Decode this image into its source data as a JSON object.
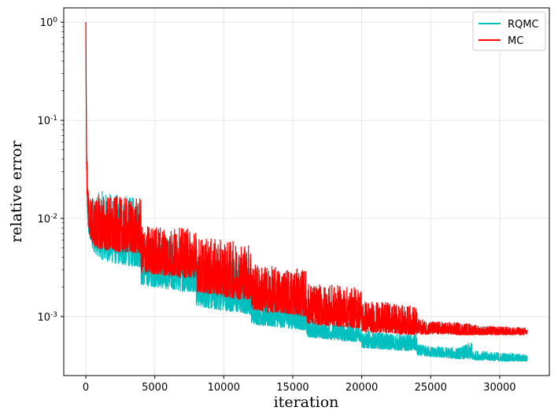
{
  "chart_data": {
    "type": "line",
    "xlabel": "iteration",
    "ylabel": "relative error",
    "x_scale": "linear",
    "y_scale": "log",
    "xlim": [
      -1600,
      33600
    ],
    "ylim": [
      0.00025,
      1.4
    ],
    "x_ticks": [
      0,
      5000,
      10000,
      15000,
      20000,
      25000,
      30000
    ],
    "x_tick_labels": [
      "0",
      "5000",
      "10000",
      "15000",
      "20000",
      "25000",
      "30000"
    ],
    "y_ticks": [
      0.001,
      0.01,
      0.1,
      1
    ],
    "y_tick_exponents": [
      "-3",
      "-2",
      "-1",
      "0"
    ],
    "y_tick_base": "10",
    "grid": true,
    "legend_position": "top-right",
    "series": [
      {
        "name": "RQMC",
        "color": "#00bfbf",
        "x": [
          0,
          30,
          60,
          100,
          150,
          200,
          300,
          500,
          800,
          1200,
          2000,
          3000,
          3990,
          4010,
          5000,
          6000,
          7000,
          7990,
          8010,
          9000,
          10000,
          11000,
          11990,
          12010,
          13000,
          14000,
          15000,
          15990,
          16010,
          17000,
          18000,
          19000,
          19990,
          20010,
          21000,
          22000,
          23000,
          23990,
          24010,
          25000,
          26000,
          27000,
          27990,
          28010,
          29000,
          30000,
          31000,
          32000
        ],
        "low": [
          1.0,
          0.12,
          0.03,
          0.012,
          0.008,
          0.007,
          0.006,
          0.0048,
          0.0042,
          0.0038,
          0.0035,
          0.0033,
          0.0032,
          0.0021,
          0.002,
          0.0019,
          0.0018,
          0.0018,
          0.0013,
          0.0012,
          0.00115,
          0.0011,
          0.00105,
          0.00085,
          0.0008,
          0.00078,
          0.00075,
          0.00072,
          0.00062,
          0.0006,
          0.00058,
          0.00056,
          0.00055,
          0.00048,
          0.00047,
          0.00046,
          0.00045,
          0.00045,
          0.0004,
          0.00039,
          0.00038,
          0.00037,
          0.00037,
          0.00036,
          0.00036,
          0.00035,
          0.00035,
          0.00035
        ],
        "high": [
          1.0,
          0.15,
          0.06,
          0.03,
          0.02,
          0.017,
          0.016,
          0.017,
          0.018,
          0.019,
          0.018,
          0.017,
          0.016,
          0.0065,
          0.0065,
          0.0063,
          0.0062,
          0.006,
          0.0045,
          0.0042,
          0.004,
          0.0038,
          0.0036,
          0.0018,
          0.0017,
          0.0016,
          0.0016,
          0.0015,
          0.001,
          0.00095,
          0.0009,
          0.00088,
          0.00085,
          0.00072,
          0.0007,
          0.00068,
          0.00066,
          0.00065,
          0.00052,
          0.0005,
          0.00049,
          0.00048,
          0.00055,
          0.00045,
          0.00044,
          0.00043,
          0.00042,
          0.00041
        ]
      },
      {
        "name": "MC",
        "color": "#ff0000",
        "x": [
          0,
          30,
          60,
          100,
          150,
          200,
          300,
          500,
          800,
          1200,
          2000,
          3000,
          3990,
          4010,
          5000,
          6000,
          7000,
          7990,
          8010,
          9000,
          10000,
          11000,
          11990,
          12010,
          13000,
          14000,
          15000,
          15990,
          16010,
          17000,
          18000,
          19000,
          19990,
          20010,
          21000,
          22000,
          23000,
          23990,
          24010,
          25000,
          26000,
          27000,
          27990,
          28010,
          29000,
          30000,
          31000,
          32000
        ],
        "low": [
          1.0,
          0.15,
          0.03,
          0.013,
          0.009,
          0.0075,
          0.0065,
          0.0055,
          0.005,
          0.0048,
          0.0046,
          0.0045,
          0.0044,
          0.0028,
          0.0027,
          0.0026,
          0.0025,
          0.0025,
          0.0018,
          0.0017,
          0.0016,
          0.0015,
          0.0015,
          0.0012,
          0.0011,
          0.0011,
          0.00105,
          0.001,
          0.00085,
          0.00082,
          0.0008,
          0.00078,
          0.00076,
          0.0007,
          0.00069,
          0.00068,
          0.00066,
          0.00065,
          0.00066,
          0.00066,
          0.00066,
          0.00065,
          0.00065,
          0.00065,
          0.00065,
          0.00065,
          0.00065,
          0.00065
        ],
        "high": [
          1.0,
          0.2,
          0.08,
          0.04,
          0.025,
          0.02,
          0.017,
          0.016,
          0.017,
          0.018,
          0.017,
          0.016,
          0.016,
          0.0085,
          0.0085,
          0.0082,
          0.008,
          0.0078,
          0.0065,
          0.0062,
          0.006,
          0.0058,
          0.0056,
          0.0035,
          0.0033,
          0.0032,
          0.0031,
          0.003,
          0.0022,
          0.0021,
          0.0021,
          0.002,
          0.002,
          0.0015,
          0.0014,
          0.0014,
          0.0013,
          0.0013,
          0.00095,
          0.0009,
          0.00088,
          0.00087,
          0.00085,
          0.00082,
          0.0008,
          0.00079,
          0.00078,
          0.00077
        ]
      }
    ]
  }
}
